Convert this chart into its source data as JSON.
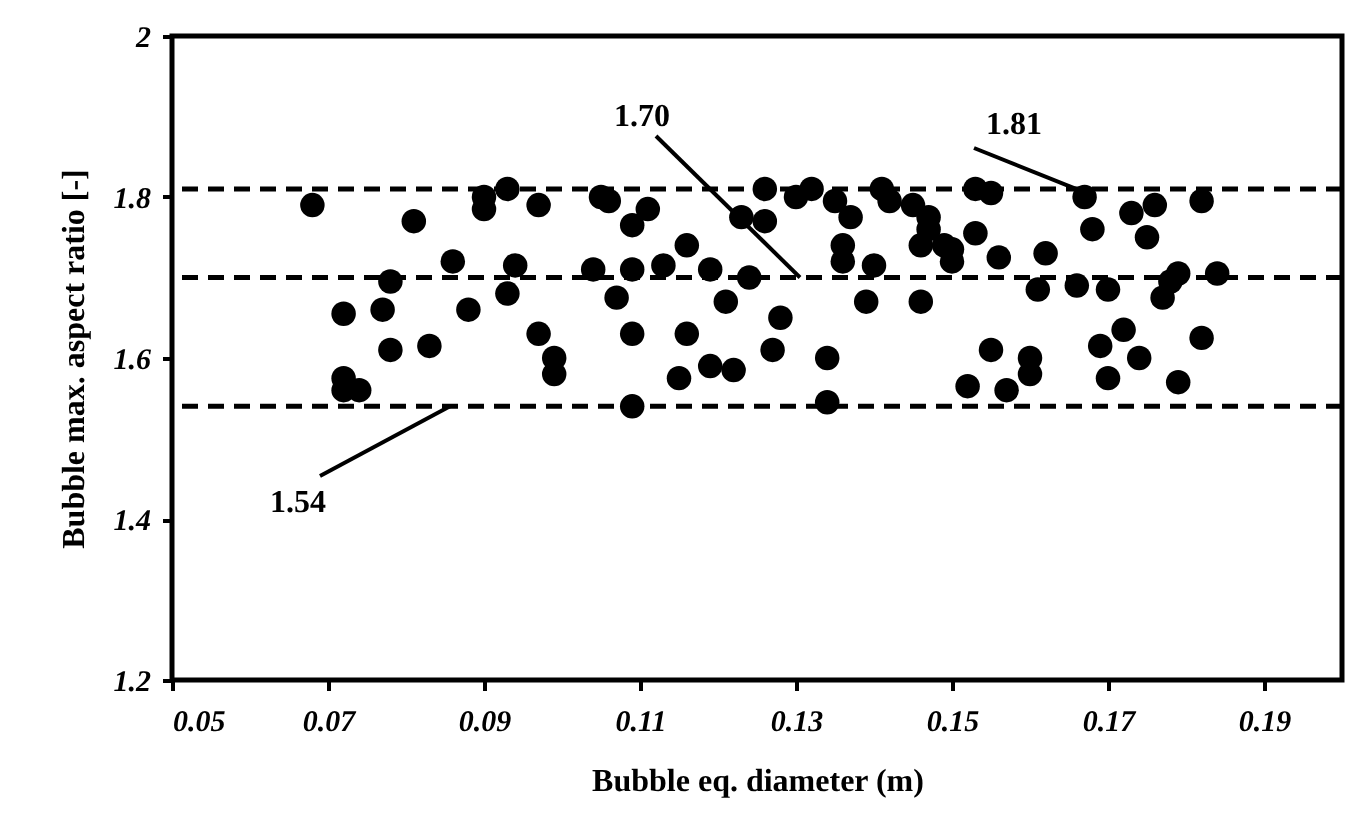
{
  "chart_data": {
    "type": "scatter",
    "xlabel": "Bubble eq. diameter (m)",
    "ylabel": "Bubble max. aspect ratio [-]",
    "xlim": [
      0.05,
      0.2
    ],
    "xticks": [
      0.05,
      0.07,
      0.09,
      0.11,
      0.13,
      0.15,
      0.17,
      0.19
    ],
    "ylim": [
      1.2,
      2
    ],
    "yticks": [
      1.2,
      1.4,
      1.6,
      1.8,
      2
    ],
    "grid": false,
    "marker": "circle",
    "ref_lines": [
      {
        "axis": "y",
        "value": 1.81,
        "label": "1.81",
        "line_style": "dashed",
        "color": "#000000"
      },
      {
        "axis": "y",
        "value": 1.7,
        "label": "1.70",
        "line_style": "dashed",
        "color": "#000000"
      },
      {
        "axis": "y",
        "value": 1.54,
        "label": "1.54",
        "line_style": "dashed",
        "color": "#000000"
      }
    ],
    "series": [
      {
        "color": "#000000",
        "x": [
          0.068,
          0.081,
          0.09,
          0.09,
          0.093,
          0.097,
          0.105,
          0.086,
          0.094,
          0.093,
          0.078,
          0.077,
          0.072,
          0.088,
          0.078,
          0.083,
          0.097,
          0.099,
          0.099,
          0.072,
          0.072,
          0.074,
          0.104,
          0.106,
          0.111,
          0.109,
          0.109,
          0.113,
          0.116,
          0.119,
          0.107,
          0.109,
          0.116,
          0.121,
          0.124,
          0.128,
          0.127,
          0.115,
          0.119,
          0.122,
          0.134,
          0.109,
          0.134,
          0.123,
          0.126,
          0.126,
          0.13,
          0.132,
          0.135,
          0.137,
          0.136,
          0.136,
          0.141,
          0.142,
          0.145,
          0.147,
          0.147,
          0.146,
          0.149,
          0.14,
          0.139,
          0.146,
          0.15,
          0.15,
          0.153,
          0.156,
          0.153,
          0.155,
          0.162,
          0.161,
          0.166,
          0.17,
          0.167,
          0.168,
          0.173,
          0.176,
          0.175,
          0.182,
          0.179,
          0.178,
          0.177,
          0.184,
          0.155,
          0.16,
          0.16,
          0.152,
          0.157,
          0.169,
          0.172,
          0.174,
          0.17,
          0.182,
          0.179
        ],
        "values": [
          1.79,
          1.77,
          1.785,
          1.8,
          1.81,
          1.79,
          1.8,
          1.72,
          1.715,
          1.68,
          1.695,
          1.66,
          1.655,
          1.66,
          1.61,
          1.615,
          1.63,
          1.6,
          1.58,
          1.575,
          1.56,
          1.56,
          1.71,
          1.795,
          1.785,
          1.765,
          1.71,
          1.715,
          1.74,
          1.71,
          1.675,
          1.63,
          1.63,
          1.67,
          1.7,
          1.65,
          1.61,
          1.575,
          1.59,
          1.585,
          1.6,
          1.54,
          1.545,
          1.775,
          1.77,
          1.81,
          1.8,
          1.81,
          1.795,
          1.775,
          1.74,
          1.72,
          1.81,
          1.795,
          1.79,
          1.775,
          1.76,
          1.74,
          1.74,
          1.715,
          1.67,
          1.67,
          1.735,
          1.72,
          1.755,
          1.725,
          1.81,
          1.805,
          1.73,
          1.685,
          1.69,
          1.685,
          1.8,
          1.76,
          1.78,
          1.79,
          1.75,
          1.795,
          1.705,
          1.695,
          1.675,
          1.705,
          1.61,
          1.6,
          1.58,
          1.565,
          1.56,
          1.615,
          1.635,
          1.6,
          1.575,
          1.625,
          1.57
        ]
      }
    ]
  }
}
